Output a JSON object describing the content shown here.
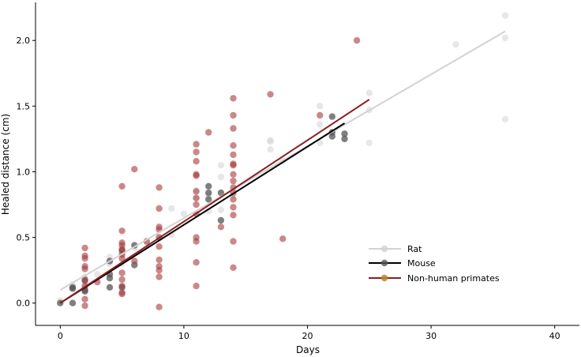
{
  "chart_data": {
    "type": "scatter",
    "title": "",
    "xlabel": "Days",
    "ylabel": "Healed distance (cm)",
    "xlim": [
      -2,
      42
    ],
    "ylim": [
      -0.17,
      2.29
    ],
    "xticks": [
      0,
      10,
      20,
      30,
      40
    ],
    "yticks": [
      0.0,
      0.5,
      1.0,
      1.5,
      2.0
    ],
    "xtick_labels": [
      "0",
      "10",
      "20",
      "30",
      "40"
    ],
    "ytick_labels": [
      "0.0",
      "0.5",
      "1.0",
      "1.5",
      "2.0"
    ],
    "grid": false,
    "legend_position": "lower-right",
    "series": [
      {
        "name": "Rat",
        "color": "#d3d3d3",
        "fit": {
          "x": [
            0,
            36
          ],
          "y": [
            0.1,
            2.07
          ]
        },
        "points": [
          [
            0,
            0.02
          ],
          [
            1,
            0.14
          ],
          [
            2,
            0.12
          ],
          [
            2,
            0.2
          ],
          [
            3,
            0.22
          ],
          [
            4,
            0.35
          ],
          [
            4,
            0.3
          ],
          [
            5,
            0.3
          ],
          [
            5,
            0.38
          ],
          [
            6,
            0.42
          ],
          [
            7,
            0.46
          ],
          [
            8,
            0.5
          ],
          [
            9,
            0.72
          ],
          [
            9,
            0.52
          ],
          [
            10,
            0.68
          ],
          [
            11,
            0.8
          ],
          [
            11,
            0.86
          ],
          [
            12,
            0.7
          ],
          [
            12,
            0.82
          ],
          [
            13,
            1.05
          ],
          [
            13,
            0.96
          ],
          [
            13,
            0.71
          ],
          [
            14,
            0.82
          ],
          [
            17,
            1.24
          ],
          [
            17,
            1.17
          ],
          [
            17,
            1.23
          ],
          [
            18,
            1.08
          ],
          [
            21,
            1.5
          ],
          [
            21,
            1.36
          ],
          [
            21,
            1.22
          ],
          [
            22,
            1.3
          ],
          [
            25,
            1.6
          ],
          [
            25,
            1.47
          ],
          [
            25,
            1.22
          ],
          [
            32,
            1.97
          ],
          [
            36,
            2.19
          ],
          [
            36,
            2.02
          ],
          [
            36,
            1.4
          ]
        ]
      },
      {
        "name": "Mouse",
        "color": "#555555",
        "fit": {
          "x": [
            0,
            23
          ],
          "y": [
            0.0,
            1.37
          ]
        },
        "points": [
          [
            0,
            0.0
          ],
          [
            1,
            0.0
          ],
          [
            1,
            0.11
          ],
          [
            1,
            0.12
          ],
          [
            2,
            0.09
          ],
          [
            2,
            0.1
          ],
          [
            2,
            0.17
          ],
          [
            4,
            0.12
          ],
          [
            4,
            0.19
          ],
          [
            4,
            0.22
          ],
          [
            4,
            0.32
          ],
          [
            5,
            0.12
          ],
          [
            5,
            0.4
          ],
          [
            6,
            0.29
          ],
          [
            6,
            0.44
          ],
          [
            12,
            0.79
          ],
          [
            12,
            0.84
          ],
          [
            12,
            0.89
          ],
          [
            13,
            0.63
          ],
          [
            13,
            0.84
          ],
          [
            22,
            1.42
          ],
          [
            22,
            1.27
          ],
          [
            22,
            1.3
          ],
          [
            23,
            1.29
          ],
          [
            23,
            1.25
          ]
        ]
      },
      {
        "name": "Non-human primates",
        "color": "#a8383b",
        "legend_marker_color": "#b8862b",
        "fit": {
          "x": [
            0,
            25
          ],
          "y": [
            0.0,
            1.55
          ]
        },
        "points": [
          [
            2,
            0.42
          ],
          [
            2,
            0.36
          ],
          [
            2,
            0.34
          ],
          [
            2,
            0.28
          ],
          [
            2,
            0.26
          ],
          [
            2,
            0.18
          ],
          [
            2,
            0.13
          ],
          [
            2,
            0.03
          ],
          [
            2,
            -0.02
          ],
          [
            3,
            0.16
          ],
          [
            5,
            0.89
          ],
          [
            5,
            0.55
          ],
          [
            5,
            0.46
          ],
          [
            5,
            0.44
          ],
          [
            5,
            0.41
          ],
          [
            5,
            0.37
          ],
          [
            5,
            0.34
          ],
          [
            5,
            0.23
          ],
          [
            5,
            0.18
          ],
          [
            5,
            0.13
          ],
          [
            5,
            0.08
          ],
          [
            5,
            0.07
          ],
          [
            6,
            1.02
          ],
          [
            6,
            0.32
          ],
          [
            7,
            0.47
          ],
          [
            8,
            0.88
          ],
          [
            8,
            0.72
          ],
          [
            8,
            0.58
          ],
          [
            8,
            0.56
          ],
          [
            8,
            0.5
          ],
          [
            8,
            0.43
          ],
          [
            8,
            0.33
          ],
          [
            8,
            0.28
          ],
          [
            8,
            0.25
          ],
          [
            8,
            0.2
          ],
          [
            8,
            -0.03
          ],
          [
            11,
            1.21
          ],
          [
            11,
            1.15
          ],
          [
            11,
            1.08
          ],
          [
            11,
            0.98
          ],
          [
            11,
            0.97
          ],
          [
            11,
            0.85
          ],
          [
            11,
            0.8
          ],
          [
            11,
            0.75
          ],
          [
            11,
            0.68
          ],
          [
            11,
            0.5
          ],
          [
            11,
            0.47
          ],
          [
            11,
            0.31
          ],
          [
            11,
            0.13
          ],
          [
            12,
            1.3
          ],
          [
            13,
            0.58
          ],
          [
            14,
            1.56
          ],
          [
            14,
            1.43
          ],
          [
            14,
            1.33
          ],
          [
            14,
            1.2
          ],
          [
            14,
            1.13
          ],
          [
            14,
            1.06
          ],
          [
            14,
            1.05
          ],
          [
            14,
            0.98
          ],
          [
            14,
            0.93
          ],
          [
            14,
            0.88
          ],
          [
            14,
            0.84
          ],
          [
            14,
            0.79
          ],
          [
            14,
            0.73
          ],
          [
            14,
            0.67
          ],
          [
            14,
            0.47
          ],
          [
            14,
            0.27
          ],
          [
            17,
            1.59
          ],
          [
            18,
            0.49
          ],
          [
            21,
            1.43
          ],
          [
            24,
            2.0
          ]
        ]
      }
    ]
  }
}
